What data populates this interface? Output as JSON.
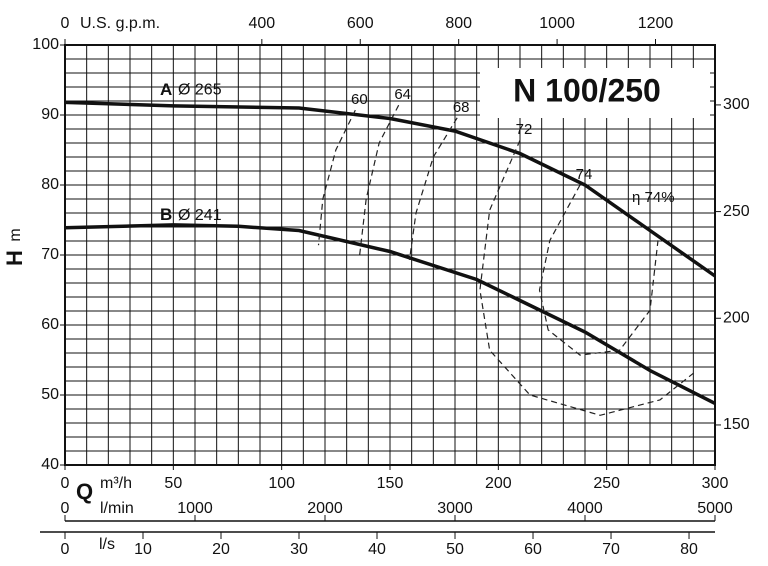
{
  "chart_data": {
    "type": "line",
    "title": "N 100/250",
    "ylabel": "H",
    "yunit": "m",
    "ylim": [
      40,
      100
    ],
    "yticks": [
      40,
      50,
      60,
      70,
      80,
      90,
      100
    ],
    "ygrid_step": 2,
    "y2lim": [
      131.23,
      328.08
    ],
    "y2ticks": [
      150,
      200,
      250,
      300
    ],
    "xlim": [
      0,
      300
    ],
    "xticks": [
      0,
      50,
      100,
      150,
      200,
      250,
      300
    ],
    "xgrid_step": 10,
    "xlabel": "Q",
    "xunit": "m³/h",
    "top_axis": {
      "label": "U.S. g.p.m.",
      "xlim": [
        0,
        1320.9
      ],
      "xticks": [
        0,
        400,
        600,
        800,
        1000,
        1200
      ]
    },
    "lmin_axis": {
      "label": "l/min",
      "xlim": [
        0,
        5000
      ],
      "xticks": [
        0,
        1000,
        2000,
        3000,
        4000,
        5000
      ]
    },
    "ls_axis": {
      "label": "l/s",
      "xlim": [
        0,
        83.33
      ],
      "xticks": [
        0,
        10,
        20,
        30,
        40,
        50,
        60,
        70,
        80
      ]
    },
    "grid": true,
    "series": [
      {
        "name": "A",
        "diameter": "Ø 265",
        "color": "#111111",
        "style": "solid",
        "x": [
          0,
          50,
          108,
          150,
          180,
          210,
          240,
          270,
          300
        ],
        "values": [
          91.8,
          91.3,
          91,
          89.5,
          87.7,
          84.5,
          80,
          73.5,
          67
        ]
      },
      {
        "name": "B",
        "diameter": "Ø 241",
        "color": "#111111",
        "style": "solid",
        "x": [
          0,
          50,
          80,
          108,
          150,
          190,
          210,
          240,
          270,
          300
        ],
        "values": [
          73.9,
          74.3,
          74.1,
          73.5,
          70.5,
          66.5,
          63.5,
          59,
          53.5,
          48.8
        ]
      },
      {
        "name": "60",
        "color": "#222222",
        "style": "dashed",
        "x": [
          134,
          125,
          119,
          117
        ],
        "values": [
          90.7,
          85,
          78,
          71.4
        ]
      },
      {
        "name": "64",
        "color": "#222222",
        "style": "dashed",
        "x": [
          154,
          145,
          139,
          136
        ],
        "values": [
          91.4,
          86,
          78,
          70
        ]
      },
      {
        "name": "68",
        "color": "#222222",
        "style": "dashed",
        "x": [
          181,
          170,
          162,
          159
        ],
        "values": [
          89.6,
          84,
          76,
          69.3
        ]
      },
      {
        "name": "72",
        "color": "#222222",
        "style": "dashed",
        "x": [
          210,
          196,
          191.5,
          196,
          214.6,
          247,
          274.6,
          290.8
        ],
        "values": [
          86.4,
          76.4,
          65,
          56.4,
          50,
          47.1,
          49.3,
          53.3
        ]
      },
      {
        "name": "74",
        "color": "#222222",
        "style": "dashed",
        "x": [
          237.7,
          223.8,
          219,
          223,
          237.7,
          256,
          270,
          273.7
        ],
        "values": [
          80,
          72.1,
          65,
          59.3,
          55.7,
          56.4,
          62.1,
          72.1
        ]
      }
    ],
    "annotation": "η 74%"
  }
}
